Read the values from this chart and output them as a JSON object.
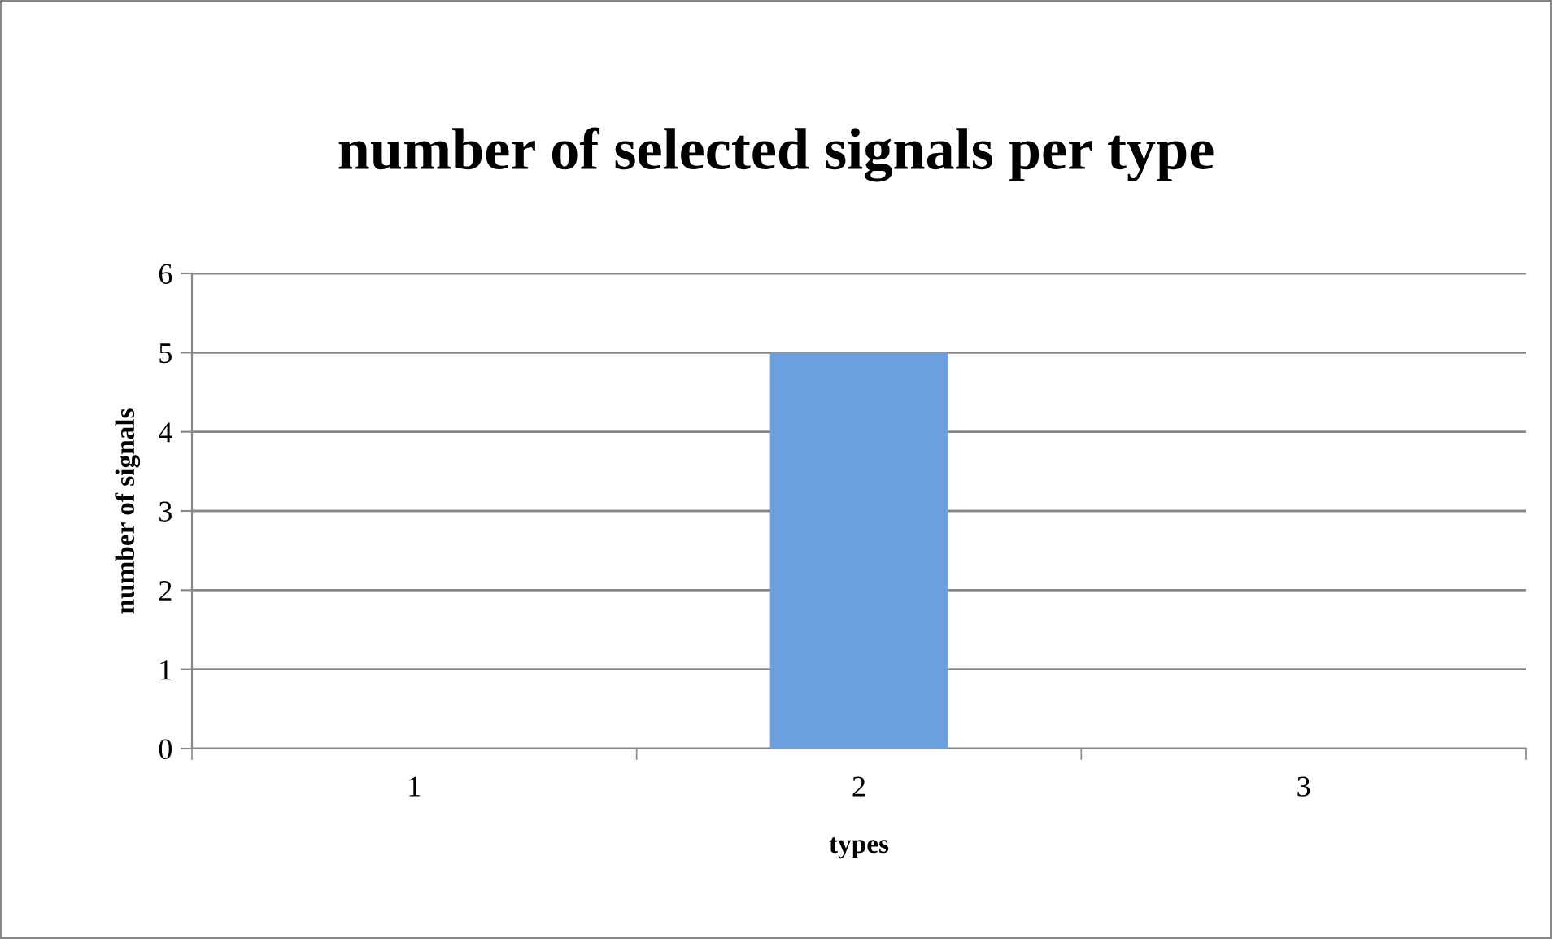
{
  "chart_data": {
    "type": "bar",
    "title": "number of selected signals per type",
    "xlabel": "types",
    "ylabel": "number of signals",
    "categories": [
      "1",
      "2",
      "3"
    ],
    "values": [
      0,
      5,
      0
    ],
    "color": "#6a9fe0",
    "ylim": [
      0,
      6
    ],
    "yticks": [
      0,
      1,
      2,
      3,
      4,
      5,
      6
    ],
    "grid": "y"
  }
}
